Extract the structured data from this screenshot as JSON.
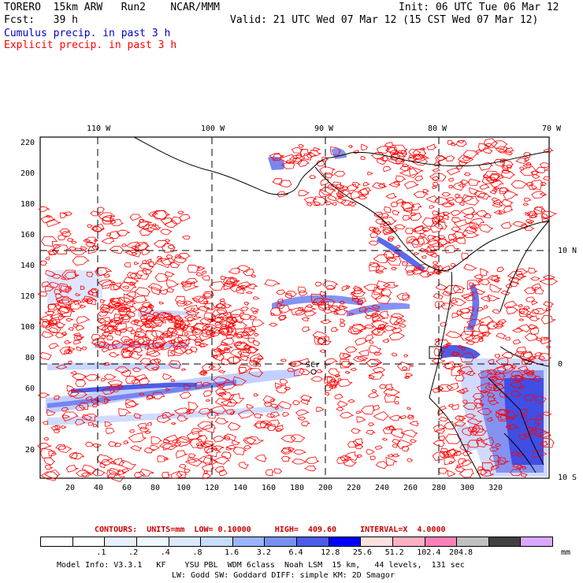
{
  "header": {
    "model_line": "TORERO  15km ARW   Run2    NCAR/MMM",
    "init": "Init: 06 UTC Tue 06 Mar 12",
    "fcst_line": "Fcst:   39 h",
    "valid": "Valid: 21 UTC Wed 07 Mar 12 (15 CST Wed 07 Mar 12)",
    "legend_cumulus": "Cumulus precip. in past 3 h",
    "legend_explicit": "Explicit precip. in past 3 h",
    "cumulus_color": "#0000cc",
    "explicit_color": "#ff0000"
  },
  "map": {
    "top_lon_labels": [
      "110 W",
      "100 W",
      "90 W",
      "80 W",
      "70 W"
    ],
    "right_lat_labels": [
      "10 N",
      "0",
      "10 S"
    ],
    "left_ticks": [
      "220",
      "200",
      "180",
      "160",
      "140",
      "120",
      "100",
      "80",
      "60",
      "40",
      "20"
    ],
    "bottom_ticks": [
      "20",
      "40",
      "60",
      "80",
      "100",
      "120",
      "140",
      "160",
      "180",
      "200",
      "220",
      "240",
      "260",
      "280",
      "300",
      "320"
    ],
    "station_label": "SCr"
  },
  "contour_info": {
    "line": "CONTOURS:  UNITS=mm  LOW= 0.10000     HIGH=  409.60     INTERVAL=X  4.0000",
    "color": "#cc0000"
  },
  "colorbar": {
    "colors": [
      "#ffffff",
      "#ffffff",
      "#e6f0ff",
      "#f0f8ff",
      "#dbe8ff",
      "#c8dcff",
      "#9ab4ff",
      "#7890f0",
      "#4a5ce8",
      "#0000ff",
      "#ffe0e0",
      "#ffb0c0",
      "#ff80b8",
      "#c0c0c0",
      "#404040",
      "#d8a8ff"
    ],
    "labels": [
      ".1",
      ".2",
      ".4",
      ".8",
      "1.6",
      "3.2",
      "6.4",
      "12.8",
      "25.6",
      "51.2",
      "102.4",
      "204.8"
    ],
    "units": "mm"
  },
  "footer": {
    "line1": "Model Info: V3.3.1   KF    YSU PBL  WDM 6class  Noah LSM  15 km,   44 levels,  131 sec",
    "line2": "LW: Godd SW: Goddard DIFF: simple KM: 2D Smagor"
  }
}
